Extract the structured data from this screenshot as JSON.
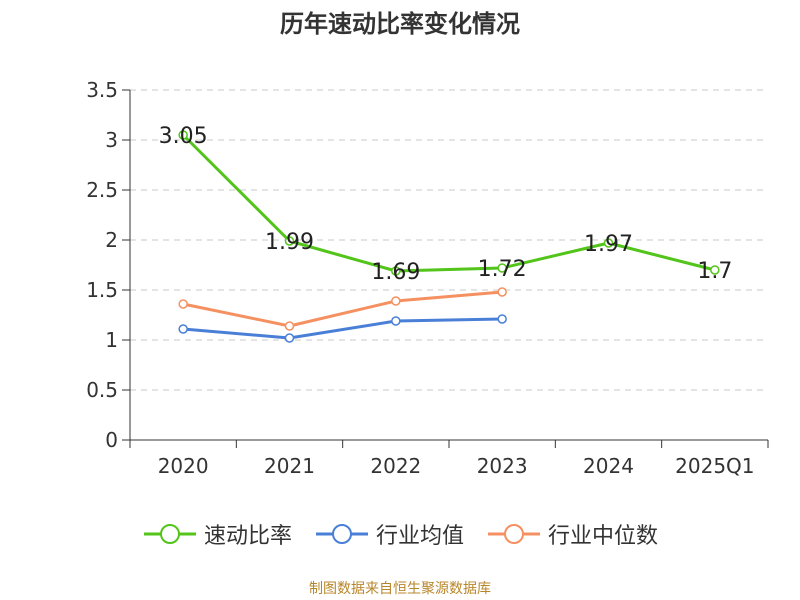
{
  "chart_data": {
    "type": "line",
    "title": "历年速动比率变化情况",
    "categories": [
      "2020",
      "2021",
      "2022",
      "2023",
      "2024",
      "2025Q1"
    ],
    "ylim": [
      0,
      3.5
    ],
    "yticks": [
      "0",
      "0.5",
      "1",
      "1.5",
      "2",
      "2.5",
      "3",
      "3.5"
    ],
    "grid": true,
    "legend_position": "bottom",
    "series": [
      {
        "name": "速动比率",
        "color": "#52c41a",
        "values": [
          3.05,
          1.99,
          1.69,
          1.72,
          1.97,
          1.7
        ],
        "labels": [
          "3.05",
          "1.99",
          "1.69",
          "1.72",
          "1.97",
          "1.7"
        ],
        "show_labels": true
      },
      {
        "name": "行业均值",
        "color": "#4a7fd8",
        "values": [
          1.11,
          1.02,
          1.19,
          1.21,
          null,
          null
        ],
        "show_labels": false
      },
      {
        "name": "行业中位数",
        "color": "#f59060",
        "values": [
          1.36,
          1.14,
          1.39,
          1.48,
          null,
          null
        ],
        "show_labels": false
      }
    ]
  },
  "source_note": "制图数据来自恒生聚源数据库"
}
